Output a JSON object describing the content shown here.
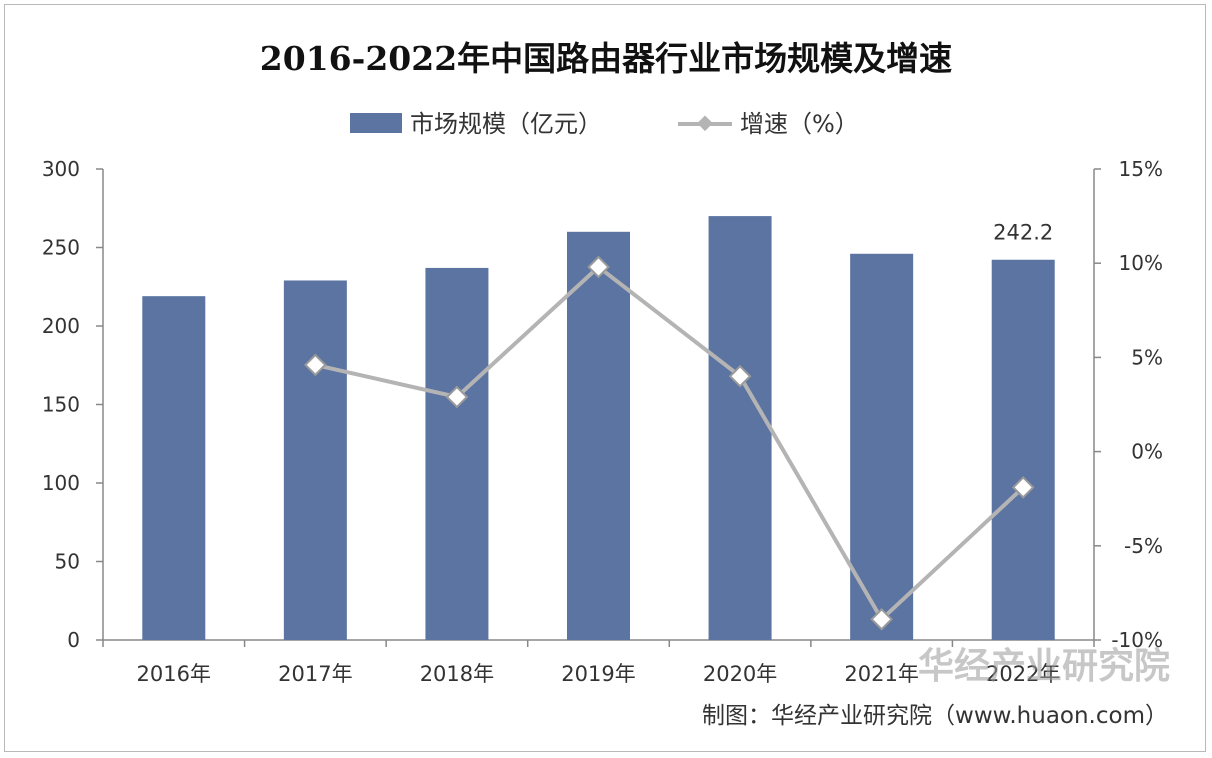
{
  "chart_data": {
    "type": "bar+line",
    "title": "2016-2022年中国路由器行业市场规模及增速",
    "categories": [
      "2016年",
      "2017年",
      "2018年",
      "2019年",
      "2020年",
      "2021年",
      "2022年"
    ],
    "series": [
      {
        "name": "市场规模（亿元）",
        "type": "bar",
        "axis": "left",
        "values": [
          219,
          229,
          237,
          260,
          270,
          246,
          242.2
        ],
        "color": "#5b74a1"
      },
      {
        "name": "增速（%）",
        "type": "line",
        "axis": "right",
        "values": [
          null,
          4.6,
          2.9,
          9.8,
          4.0,
          -8.9,
          -1.9
        ],
        "color": "#b4b4b4"
      }
    ],
    "data_labels": [
      {
        "category": "2022年",
        "series": "市场规模（亿元）",
        "text": "242.2"
      }
    ],
    "y_left": {
      "min": 0,
      "max": 300,
      "ticks": [
        "0",
        "50",
        "100",
        "150",
        "200",
        "250",
        "300"
      ]
    },
    "y_right": {
      "min": -10,
      "max": 15,
      "ticks": [
        "-10%",
        "-5%",
        "0%",
        "5%",
        "10%",
        "15%"
      ]
    },
    "legend_position": "top-center",
    "grid": false
  },
  "watermark": "华经产业研究院",
  "footer": {
    "credit": "制图：华经产业研究院（www.huaon.com）"
  }
}
